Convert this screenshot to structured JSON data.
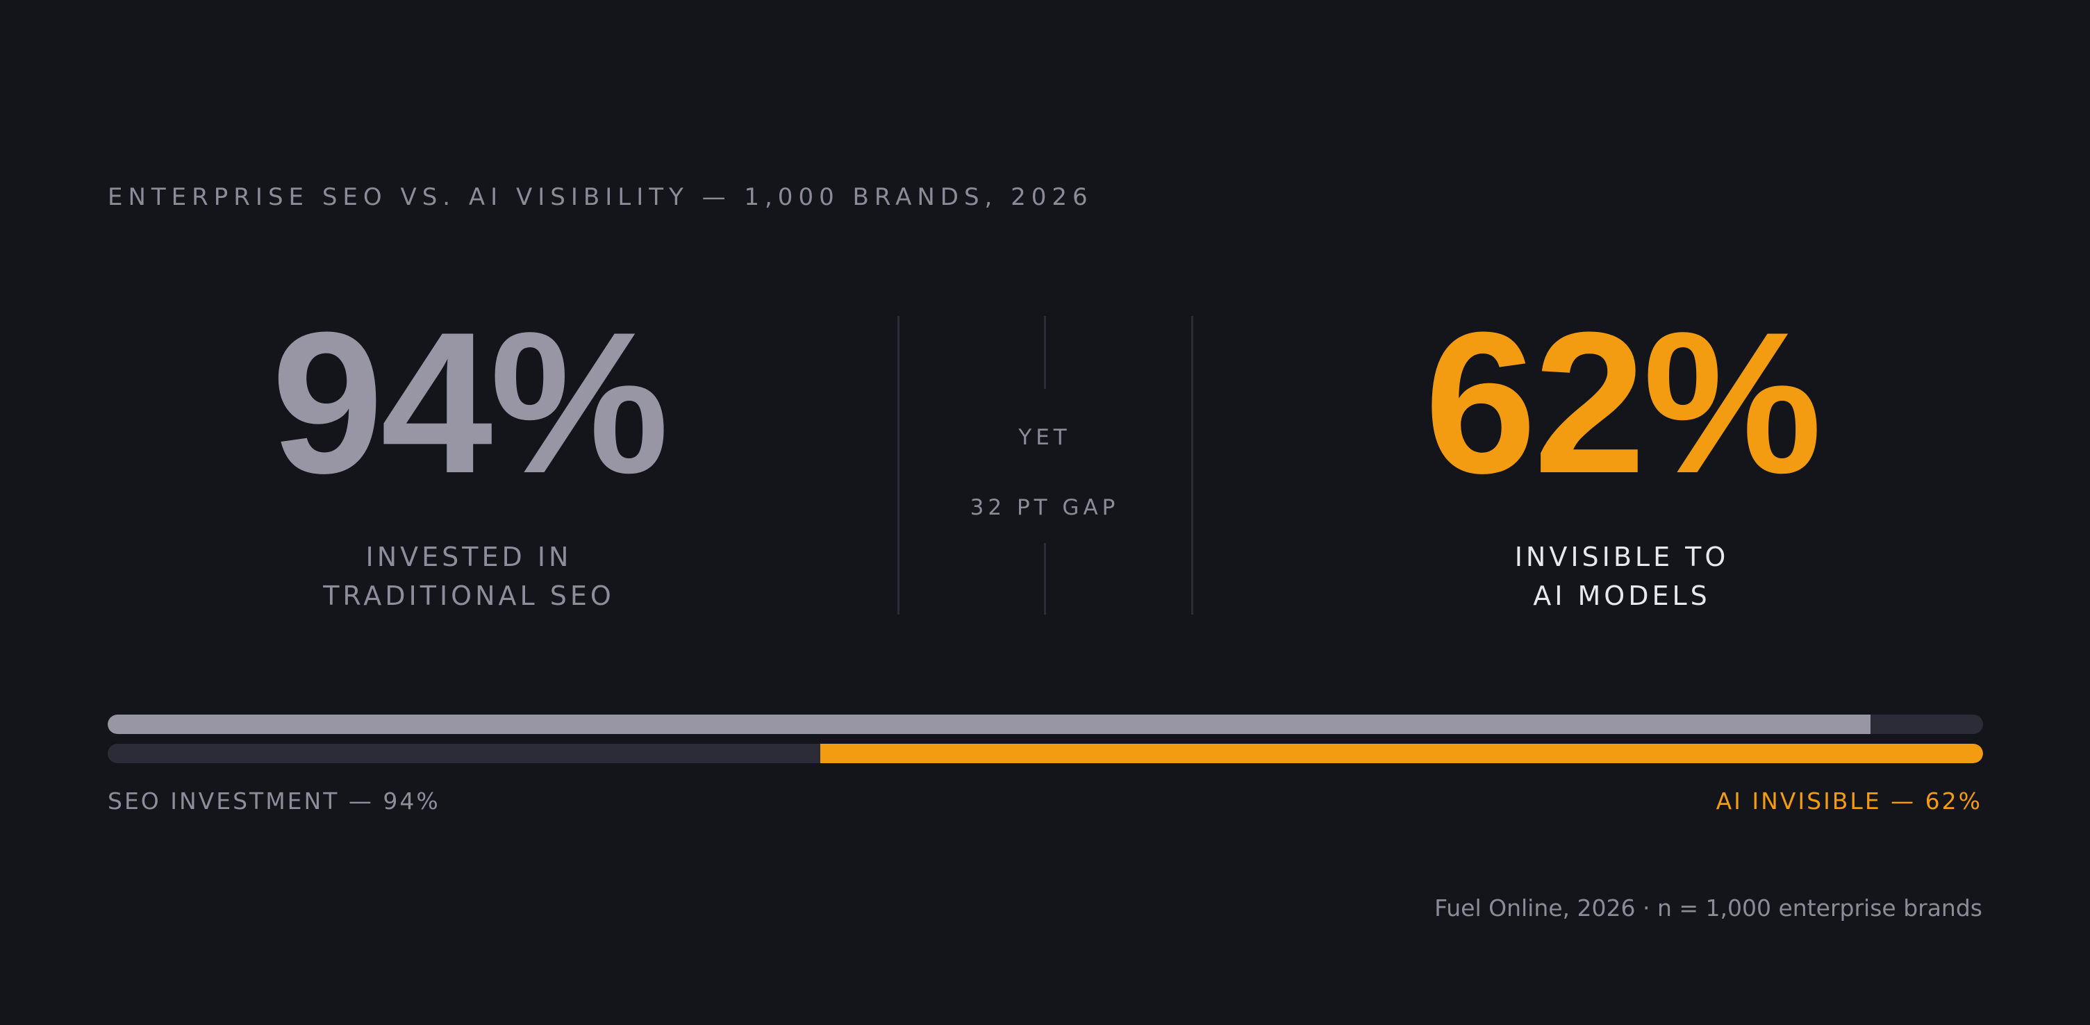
{
  "header": {
    "eyebrow": "ENTERPRISE SEO VS. AI VISIBILITY — 1,000 BRANDS, 2026"
  },
  "chart_data": {
    "type": "bar",
    "series": [
      {
        "stat_label": "94%",
        "caption_lines": [
          "INVESTED IN",
          "TRADITIONAL SEO"
        ],
        "value": 94,
        "bar_label": "SEO INVESTMENT — 94%",
        "color": "#9896a5",
        "align": "left"
      },
      {
        "stat_label": "62%",
        "caption_lines": [
          "INVISIBLE TO",
          "AI MODELS"
        ],
        "value": 62,
        "bar_label": "AI INVISIBLE — 62%",
        "color": "#f39c12",
        "align": "right"
      }
    ],
    "ylim": [
      0,
      100
    ],
    "divider": {
      "word": "YET",
      "gap_label": "32 PT GAP"
    }
  },
  "footer": {
    "source": "Fuel Online, 2026 · n = 1,000 enterprise brands"
  },
  "colors": {
    "background": "#14141b",
    "track": "#2c2c38",
    "accent": "#f39c12",
    "muted": "#9896a5"
  }
}
